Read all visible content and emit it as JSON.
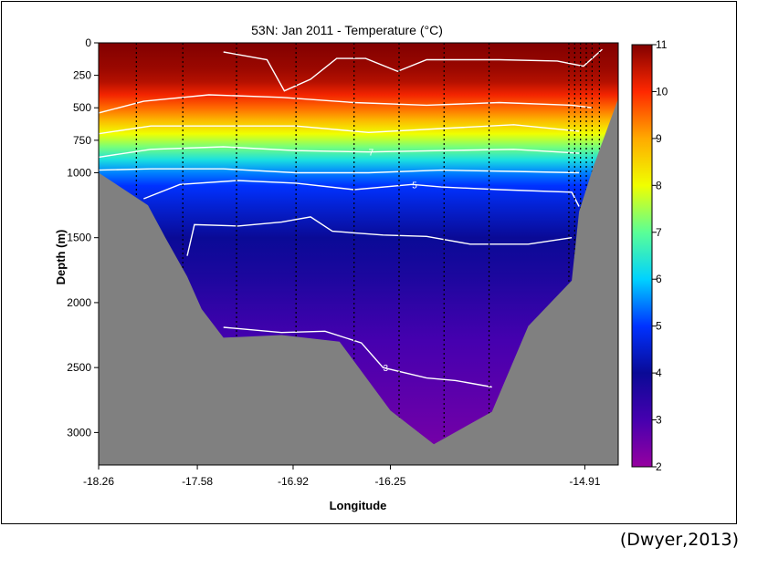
{
  "chart_data": {
    "type": "heatmap",
    "title": "53N: Jan 2011 - Temperature (°C)",
    "xlabel": "Longitude",
    "ylabel": "Depth (m)",
    "xlim": [
      -18.26,
      -14.68
    ],
    "ylim": [
      3250,
      0
    ],
    "x_ticks": [
      -18.26,
      -17.58,
      -16.92,
      -16.25,
      -14.91
    ],
    "y_ticks": [
      0,
      250,
      500,
      750,
      1000,
      1500,
      2000,
      2500,
      3000
    ],
    "colorbar": {
      "min": 2,
      "max": 11,
      "ticks": [
        2,
        3,
        4,
        5,
        6,
        7,
        8,
        9,
        10,
        11
      ],
      "colormap": "jet-purple-to-darkred"
    },
    "temperature_profile": [
      {
        "depth": 0,
        "temp": 11.0
      },
      {
        "depth": 100,
        "temp": 10.9
      },
      {
        "depth": 200,
        "temp": 10.8
      },
      {
        "depth": 300,
        "temp": 10.6
      },
      {
        "depth": 400,
        "temp": 10.1
      },
      {
        "depth": 500,
        "temp": 9.5
      },
      {
        "depth": 600,
        "temp": 8.8
      },
      {
        "depth": 700,
        "temp": 8.0
      },
      {
        "depth": 800,
        "temp": 7.2
      },
      {
        "depth": 900,
        "temp": 6.3
      },
      {
        "depth": 1000,
        "temp": 5.5
      },
      {
        "depth": 1100,
        "temp": 5.0
      },
      {
        "depth": 1250,
        "temp": 4.6
      },
      {
        "depth": 1500,
        "temp": 4.0
      },
      {
        "depth": 1800,
        "temp": 3.7
      },
      {
        "depth": 2000,
        "temp": 3.4
      },
      {
        "depth": 2300,
        "temp": 3.0
      },
      {
        "depth": 2600,
        "temp": 2.8
      },
      {
        "depth": 3000,
        "temp": 2.5
      },
      {
        "depth": 3250,
        "temp": 2.3
      }
    ],
    "bathymetry": [
      {
        "x": -18.26,
        "depth": 1000
      },
      {
        "x": -17.92,
        "depth": 1250
      },
      {
        "x": -17.8,
        "depth": 1500
      },
      {
        "x": -17.65,
        "depth": 1800
      },
      {
        "x": -17.55,
        "depth": 2050
      },
      {
        "x": -17.4,
        "depth": 2270
      },
      {
        "x": -17.0,
        "depth": 2250
      },
      {
        "x": -16.6,
        "depth": 2300
      },
      {
        "x": -16.25,
        "depth": 2830
      },
      {
        "x": -15.95,
        "depth": 3090
      },
      {
        "x": -15.55,
        "depth": 2840
      },
      {
        "x": -15.3,
        "depth": 2180
      },
      {
        "x": -15.0,
        "depth": 1830
      },
      {
        "x": -14.95,
        "depth": 1300
      },
      {
        "x": -14.85,
        "depth": 950
      },
      {
        "x": -14.68,
        "depth": 430
      }
    ],
    "stations": [
      -18.0,
      -17.68,
      -17.31,
      -16.9,
      -16.5,
      -16.19,
      -15.88,
      -15.57,
      -15.02,
      -14.98,
      -14.94,
      -14.9,
      -14.86,
      -14.81
    ],
    "contours": [
      {
        "label": "",
        "points": [
          [
            -17.4,
            70
          ],
          [
            -17.1,
            130
          ],
          [
            -16.98,
            370
          ],
          [
            -16.8,
            280
          ],
          [
            -16.62,
            120
          ],
          [
            -16.42,
            120
          ],
          [
            -16.2,
            220
          ],
          [
            -16.0,
            130
          ],
          [
            -15.5,
            130
          ],
          [
            -15.1,
            140
          ],
          [
            -14.92,
            180
          ],
          [
            -14.79,
            50
          ]
        ]
      },
      {
        "label": "",
        "points": [
          [
            -18.26,
            540
          ],
          [
            -17.95,
            450
          ],
          [
            -17.5,
            400
          ],
          [
            -17.0,
            420
          ],
          [
            -16.5,
            460
          ],
          [
            -16.0,
            480
          ],
          [
            -15.5,
            460
          ],
          [
            -15.0,
            480
          ],
          [
            -14.86,
            500
          ]
        ]
      },
      {
        "label": "",
        "points": [
          [
            -18.26,
            700
          ],
          [
            -17.9,
            640
          ],
          [
            -17.4,
            640
          ],
          [
            -16.9,
            640
          ],
          [
            -16.4,
            690
          ],
          [
            -15.9,
            660
          ],
          [
            -15.4,
            630
          ],
          [
            -14.95,
            680
          ]
        ]
      },
      {
        "label": "7",
        "points": [
          [
            -18.26,
            880
          ],
          [
            -17.9,
            820
          ],
          [
            -17.4,
            800
          ],
          [
            -16.9,
            830
          ],
          [
            -16.4,
            840
          ],
          [
            -15.9,
            830
          ],
          [
            -15.4,
            820
          ],
          [
            -14.95,
            850
          ]
        ]
      },
      {
        "label": "",
        "points": [
          [
            -18.26,
            980
          ],
          [
            -17.9,
            970
          ],
          [
            -17.4,
            970
          ],
          [
            -16.9,
            1000
          ],
          [
            -16.4,
            1000
          ],
          [
            -15.9,
            980
          ],
          [
            -15.4,
            990
          ],
          [
            -14.95,
            1000
          ]
        ]
      },
      {
        "label": "5",
        "points": [
          [
            -17.95,
            1200
          ],
          [
            -17.7,
            1090
          ],
          [
            -17.3,
            1060
          ],
          [
            -16.9,
            1080
          ],
          [
            -16.5,
            1130
          ],
          [
            -16.1,
            1090
          ],
          [
            -15.9,
            1110
          ],
          [
            -15.5,
            1130
          ],
          [
            -15.0,
            1150
          ],
          [
            -14.95,
            1260
          ]
        ]
      },
      {
        "label": "",
        "points": [
          [
            -17.65,
            1640
          ],
          [
            -17.6,
            1400
          ],
          [
            -17.3,
            1410
          ],
          [
            -17.0,
            1380
          ],
          [
            -16.8,
            1340
          ],
          [
            -16.65,
            1450
          ],
          [
            -16.3,
            1480
          ],
          [
            -16.0,
            1490
          ],
          [
            -15.7,
            1550
          ],
          [
            -15.3,
            1550
          ],
          [
            -15.0,
            1500
          ]
        ]
      },
      {
        "label": "3",
        "points": [
          [
            -17.4,
            2190
          ],
          [
            -17.0,
            2230
          ],
          [
            -16.7,
            2220
          ],
          [
            -16.45,
            2310
          ],
          [
            -16.3,
            2500
          ],
          [
            -16.0,
            2580
          ],
          [
            -15.8,
            2600
          ],
          [
            -15.55,
            2650
          ]
        ]
      }
    ]
  },
  "citation": "(Dwyer,2013)"
}
